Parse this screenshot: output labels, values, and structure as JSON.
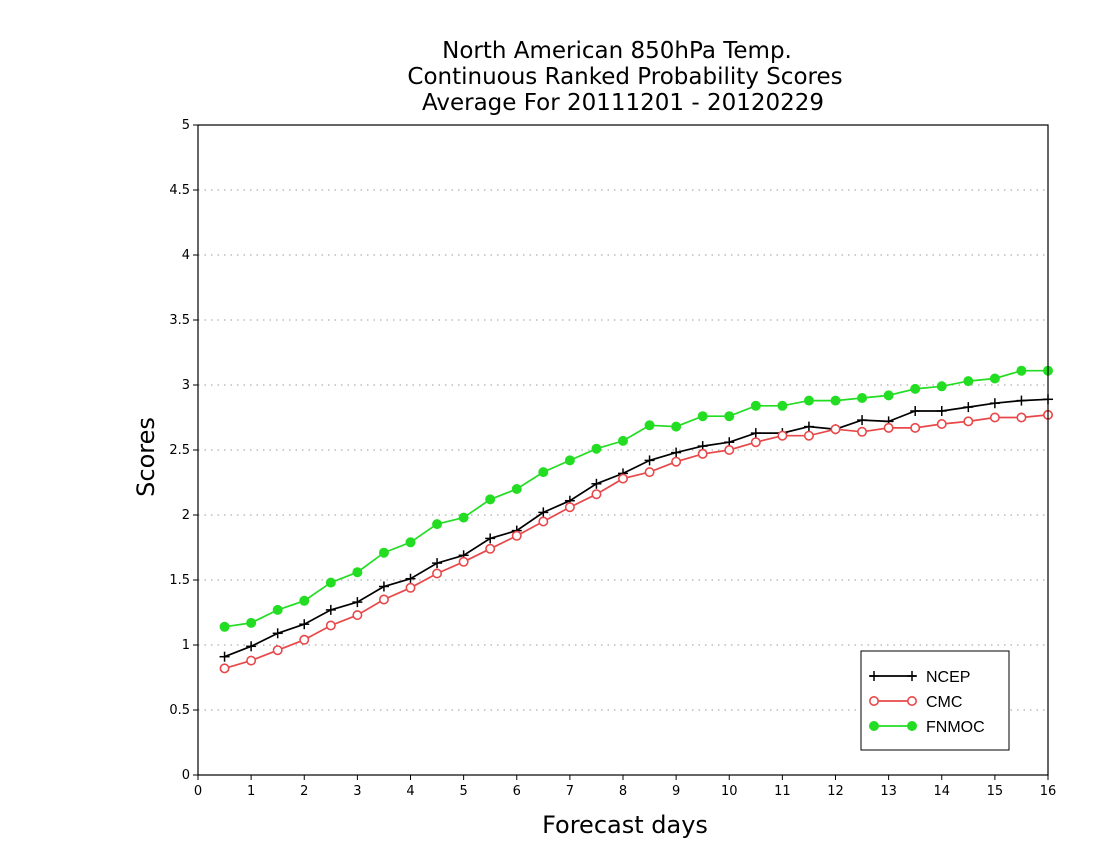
{
  "chart_data": {
    "type": "line",
    "title_lines": [
      "North American 850hPa Temp.",
      "Continuous Ranked Probability Scores",
      "Average For 20111201 - 20120229"
    ],
    "xlabel": "Forecast days",
    "ylabel": "Scores",
    "xlim": [
      0,
      16
    ],
    "ylim": [
      0,
      5
    ],
    "xticks": [
      "0",
      "1",
      "2",
      "3",
      "4",
      "5",
      "6",
      "7",
      "8",
      "9",
      "10",
      "11",
      "12",
      "13",
      "14",
      "15",
      "16"
    ],
    "yticks": [
      "0",
      "0.5",
      "1",
      "1.5",
      "2",
      "2.5",
      "3",
      "3.5",
      "4",
      "4.5",
      "5"
    ],
    "grid": "horizontal dotted",
    "legend_position": "bottom-right",
    "x": [
      0.5,
      1,
      1.5,
      2,
      2.5,
      3,
      3.5,
      4,
      4.5,
      5,
      5.5,
      6,
      6.5,
      7,
      7.5,
      8,
      8.5,
      9,
      9.5,
      10,
      10.5,
      11,
      11.5,
      12,
      12.5,
      13,
      13.5,
      14,
      14.5,
      15,
      15.5,
      16
    ],
    "series": [
      {
        "name": "NCEP",
        "color": "#000000",
        "marker": "plus",
        "values": [
          0.91,
          0.99,
          1.09,
          1.16,
          1.27,
          1.33,
          1.45,
          1.51,
          1.63,
          1.69,
          1.82,
          1.88,
          2.02,
          2.11,
          2.24,
          2.32,
          2.42,
          2.48,
          2.53,
          2.56,
          2.63,
          2.63,
          2.68,
          2.66,
          2.73,
          2.72,
          2.8,
          2.8,
          2.83,
          2.86,
          2.88,
          2.89
        ]
      },
      {
        "name": "CMC",
        "color": "#e8484a",
        "marker": "open-circle",
        "values": [
          0.82,
          0.88,
          0.96,
          1.04,
          1.15,
          1.23,
          1.35,
          1.44,
          1.55,
          1.64,
          1.74,
          1.84,
          1.95,
          2.06,
          2.16,
          2.28,
          2.33,
          2.41,
          2.47,
          2.5,
          2.56,
          2.61,
          2.61,
          2.66,
          2.64,
          2.67,
          2.67,
          2.7,
          2.72,
          2.75,
          2.75,
          2.77
        ]
      },
      {
        "name": "FNMOC",
        "color": "#22dd22",
        "marker": "filled-circle",
        "values": [
          1.14,
          1.17,
          1.27,
          1.34,
          1.48,
          1.56,
          1.71,
          1.79,
          1.93,
          1.98,
          2.12,
          2.2,
          2.33,
          2.42,
          2.51,
          2.57,
          2.69,
          2.68,
          2.76,
          2.76,
          2.84,
          2.84,
          2.88,
          2.88,
          2.9,
          2.92,
          2.97,
          2.99,
          3.03,
          3.05,
          3.11,
          3.11
        ]
      }
    ]
  }
}
